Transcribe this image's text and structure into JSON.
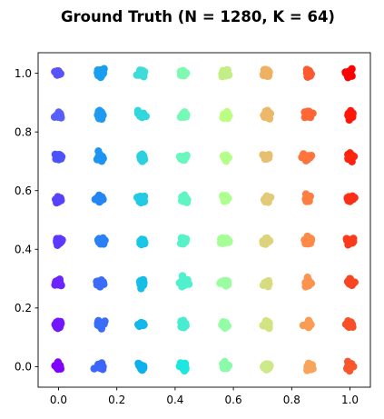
{
  "chart_data": {
    "type": "scatter",
    "title": "Ground Truth (N = 1280, K = 64)",
    "xlabel": "",
    "ylabel": "",
    "xlim": [
      -0.07,
      1.07
    ],
    "ylim": [
      -0.07,
      1.07
    ],
    "x_ticks": [
      0.0,
      0.2,
      0.4,
      0.6,
      0.8,
      1.0
    ],
    "x_tick_labels": [
      "0.0",
      "0.2",
      "0.4",
      "0.6",
      "0.8",
      "1.0"
    ],
    "y_ticks": [
      0.0,
      0.2,
      0.4,
      0.6,
      0.8,
      1.0
    ],
    "y_tick_labels": [
      "0.0",
      "0.2",
      "0.4",
      "0.6",
      "0.8",
      "1.0"
    ],
    "grid": false,
    "legend": "none",
    "colormap": "rainbow",
    "cluster_grid_positions": [
      0.0,
      0.142857,
      0.285714,
      0.428571,
      0.571429,
      0.714286,
      0.857143,
      1.0
    ],
    "clusters": [
      {
        "x": 0.0,
        "y": 0.0,
        "color": "#8000ff"
      },
      {
        "x": 0.0,
        "y": 0.142857,
        "color": "#7216ff"
      },
      {
        "x": 0.0,
        "y": 0.285714,
        "color": "#6c25fe"
      },
      {
        "x": 0.0,
        "y": 0.428571,
        "color": "#5e37fe"
      },
      {
        "x": 0.0,
        "y": 0.571429,
        "color": "#5642fd"
      },
      {
        "x": 0.0,
        "y": 0.714286,
        "color": "#4c52fc"
      },
      {
        "x": 0.0,
        "y": 0.857143,
        "color": "#585efb"
      },
      {
        "x": 0.0,
        "y": 1.0,
        "color": "#5a52fa"
      },
      {
        "x": 0.142857,
        "y": 0.0,
        "color": "#3c65fa"
      },
      {
        "x": 0.142857,
        "y": 0.142857,
        "color": "#3a6df8"
      },
      {
        "x": 0.142857,
        "y": 0.285714,
        "color": "#3a6cf8"
      },
      {
        "x": 0.142857,
        "y": 0.428571,
        "color": "#2b80f5"
      },
      {
        "x": 0.142857,
        "y": 0.571429,
        "color": "#2485f5"
      },
      {
        "x": 0.142857,
        "y": 0.714286,
        "color": "#1c95f2"
      },
      {
        "x": 0.142857,
        "y": 0.857143,
        "color": "#1f9af0"
      },
      {
        "x": 0.142857,
        "y": 1.0,
        "color": "#1a9ef0"
      },
      {
        "x": 0.285714,
        "y": 0.0,
        "color": "#0db1ec"
      },
      {
        "x": 0.285714,
        "y": 0.142857,
        "color": "#12b8e9"
      },
      {
        "x": 0.285714,
        "y": 0.285714,
        "color": "#14bee7"
      },
      {
        "x": 0.285714,
        "y": 0.428571,
        "color": "#18c6e5"
      },
      {
        "x": 0.285714,
        "y": 0.571429,
        "color": "#22cae3"
      },
      {
        "x": 0.285714,
        "y": 0.714286,
        "color": "#2bd1df"
      },
      {
        "x": 0.285714,
        "y": 0.857143,
        "color": "#32d6dd"
      },
      {
        "x": 0.285714,
        "y": 1.0,
        "color": "#3ddcda"
      },
      {
        "x": 0.428571,
        "y": 0.0,
        "color": "#1ee7df"
      },
      {
        "x": 0.428571,
        "y": 0.142857,
        "color": "#48ecd1"
      },
      {
        "x": 0.428571,
        "y": 0.285714,
        "color": "#4ef0cd"
      },
      {
        "x": 0.428571,
        "y": 0.428571,
        "color": "#57f2c8"
      },
      {
        "x": 0.428571,
        "y": 0.571429,
        "color": "#60f5c2"
      },
      {
        "x": 0.428571,
        "y": 0.714286,
        "color": "#6af7bd"
      },
      {
        "x": 0.428571,
        "y": 0.857143,
        "color": "#75f9b6"
      },
      {
        "x": 0.428571,
        "y": 1.0,
        "color": "#7efbb0"
      },
      {
        "x": 0.571429,
        "y": 0.0,
        "color": "#8afca9"
      },
      {
        "x": 0.571429,
        "y": 0.142857,
        "color": "#92fda4"
      },
      {
        "x": 0.571429,
        "y": 0.285714,
        "color": "#9afea0"
      },
      {
        "x": 0.571429,
        "y": 0.428571,
        "color": "#a6fe96"
      },
      {
        "x": 0.571429,
        "y": 0.571429,
        "color": "#adff90"
      },
      {
        "x": 0.571429,
        "y": 0.714286,
        "color": "#b4ff8a"
      },
      {
        "x": 0.571429,
        "y": 0.857143,
        "color": "#bcfe82"
      },
      {
        "x": 0.571429,
        "y": 1.0,
        "color": "#c2ee85"
      },
      {
        "x": 0.714286,
        "y": 0.0,
        "color": "#cce98a"
      },
      {
        "x": 0.714286,
        "y": 0.142857,
        "color": "#d2e482"
      },
      {
        "x": 0.714286,
        "y": 0.285714,
        "color": "#d8dc80"
      },
      {
        "x": 0.714286,
        "y": 0.428571,
        "color": "#dcd37c"
      },
      {
        "x": 0.714286,
        "y": 0.571429,
        "color": "#e2ca78"
      },
      {
        "x": 0.714286,
        "y": 0.714286,
        "color": "#e6c070"
      },
      {
        "x": 0.714286,
        "y": 0.857143,
        "color": "#ecb869"
      },
      {
        "x": 0.714286,
        "y": 1.0,
        "color": "#f0b062"
      },
      {
        "x": 0.857143,
        "y": 0.0,
        "color": "#f7a55b"
      },
      {
        "x": 0.857143,
        "y": 0.142857,
        "color": "#fa9c54"
      },
      {
        "x": 0.857143,
        "y": 0.285714,
        "color": "#fc944f"
      },
      {
        "x": 0.857143,
        "y": 0.428571,
        "color": "#fd8a48"
      },
      {
        "x": 0.857143,
        "y": 0.571429,
        "color": "#fe7e42"
      },
      {
        "x": 0.857143,
        "y": 0.714286,
        "color": "#fe743c"
      },
      {
        "x": 0.857143,
        "y": 0.857143,
        "color": "#fe6636"
      },
      {
        "x": 0.857143,
        "y": 1.0,
        "color": "#fb5a30"
      },
      {
        "x": 1.0,
        "y": 0.0,
        "color": "#f8572d"
      },
      {
        "x": 1.0,
        "y": 0.142857,
        "color": "#f94f28"
      },
      {
        "x": 1.0,
        "y": 0.285714,
        "color": "#fa4522"
      },
      {
        "x": 1.0,
        "y": 0.428571,
        "color": "#fb3a1c"
      },
      {
        "x": 1.0,
        "y": 0.571429,
        "color": "#fc2f16"
      },
      {
        "x": 1.0,
        "y": 0.714286,
        "color": "#fd2410"
      },
      {
        "x": 1.0,
        "y": 0.857143,
        "color": "#fe1709"
      },
      {
        "x": 1.0,
        "y": 1.0,
        "color": "#ff0000"
      }
    ]
  }
}
